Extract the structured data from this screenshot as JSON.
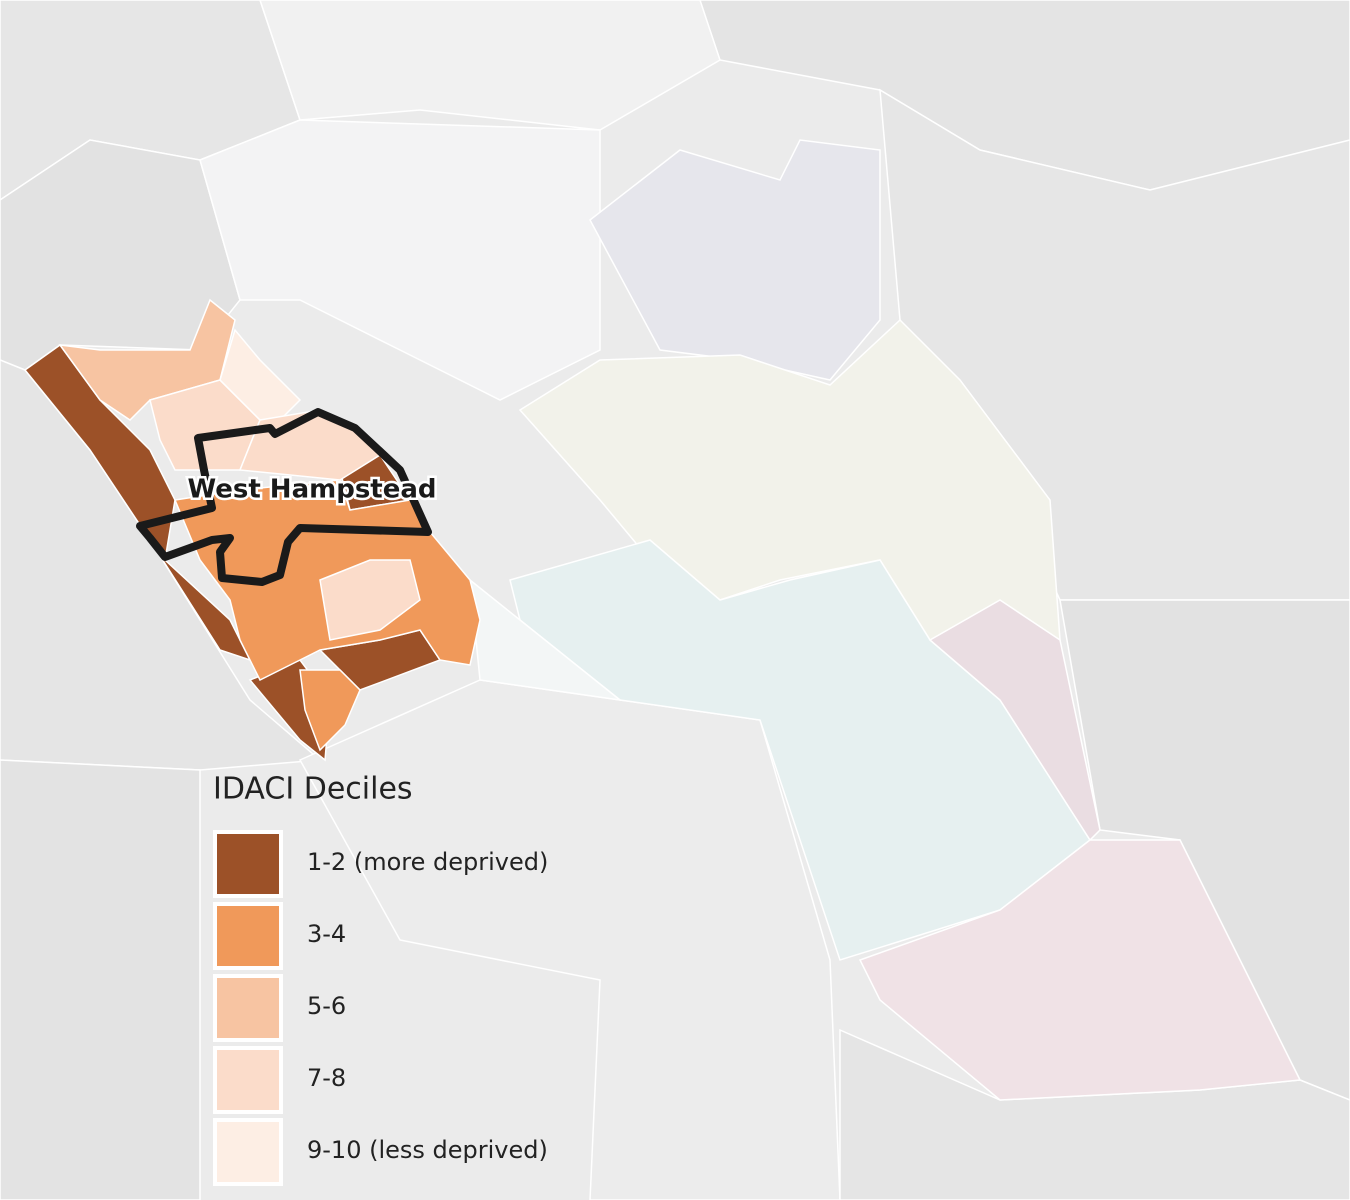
{
  "map": {
    "label": "West Hampstead",
    "legend": {
      "title": "IDACI Deciles",
      "items": [
        {
          "label": "1-2 (more deprived)",
          "color": "#9c5128"
        },
        {
          "label": "3-4",
          "color": "#f0995a"
        },
        {
          "label": "5-6",
          "color": "#f7c4a2"
        },
        {
          "label": "7-8",
          "color": "#fbdcca"
        },
        {
          "label": "9-10 (less deprived)",
          "color": "#fdeee4"
        }
      ]
    }
  }
}
